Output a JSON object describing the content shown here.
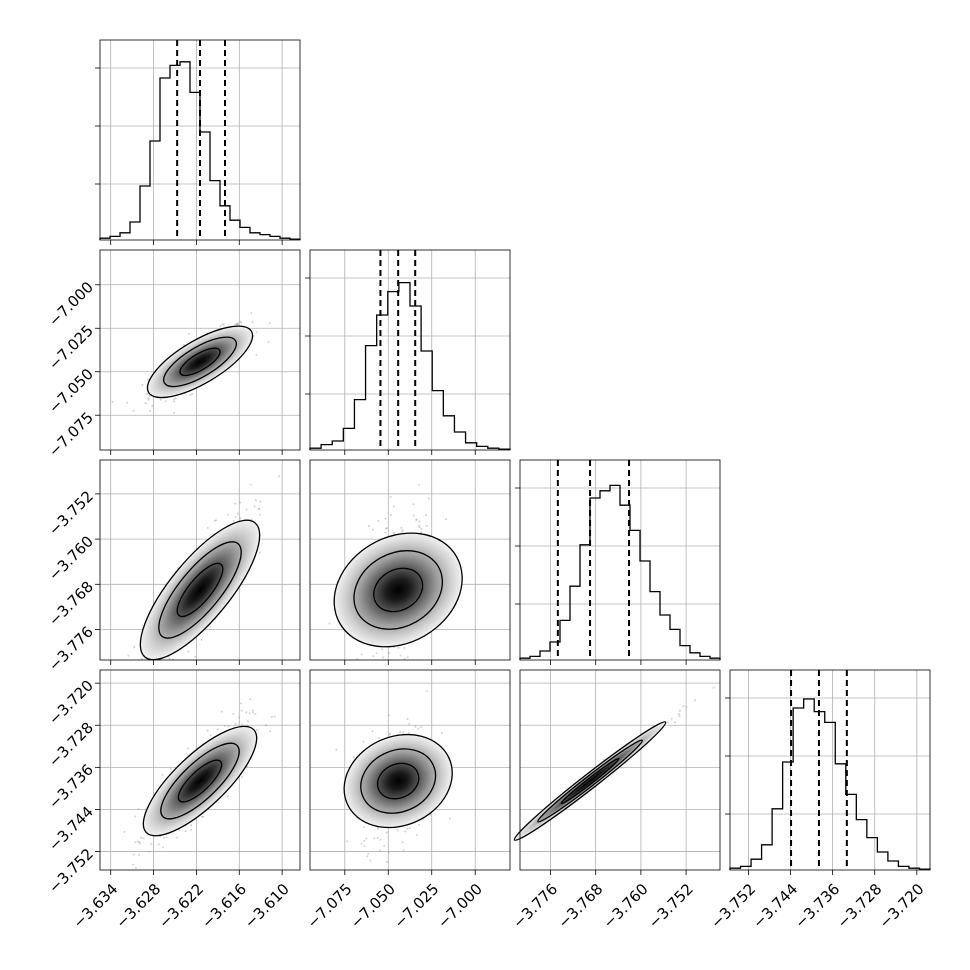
{
  "chart_data": {
    "type": "corner",
    "grid": true,
    "parameters": [
      {
        "range": [
          -3.6355,
          -3.6075
        ],
        "ticks": [
          "−3.634",
          "−3.628",
          "−3.622",
          "−3.616",
          "−3.610"
        ],
        "tick_values": [
          -3.634,
          -3.628,
          -3.622,
          -3.616,
          -3.61
        ],
        "quantiles": [
          -3.6247,
          -3.6215,
          -3.618
        ],
        "histogram": [
          0.01,
          0.02,
          0.04,
          0.1,
          0.3,
          0.55,
          0.9,
          0.97,
          0.99,
          0.82,
          0.6,
          0.33,
          0.19,
          0.11,
          0.07,
          0.04,
          0.03,
          0.02,
          0.01,
          0.005
        ]
      },
      {
        "range": [
          -7.095,
          -6.98
        ],
        "ticks": [
          "−7.075",
          "−7.050",
          "−7.025",
          "−7.000"
        ],
        "tick_values": [
          -7.075,
          -7.05,
          -7.025,
          -7.0
        ],
        "quantiles": [
          -7.0545,
          -7.0443,
          -7.0345
        ],
        "histogram": [
          0.01,
          0.03,
          0.05,
          0.12,
          0.28,
          0.58,
          0.75,
          0.88,
          0.93,
          0.8,
          0.55,
          0.33,
          0.19,
          0.1,
          0.04,
          0.02,
          0.01,
          0.005
        ]
      },
      {
        "range": [
          -3.7814,
          -3.746
        ],
        "ticks": [
          "−3.776",
          "−3.768",
          "−3.760",
          "−3.752"
        ],
        "tick_values": [
          -3.776,
          -3.768,
          -3.76,
          -3.752
        ],
        "quantiles": [
          -3.7747,
          -3.769,
          -3.7621
        ],
        "histogram": [
          0.01,
          0.02,
          0.05,
          0.1,
          0.22,
          0.41,
          0.64,
          0.9,
          0.94,
          0.97,
          0.86,
          0.72,
          0.55,
          0.38,
          0.25,
          0.17,
          0.08,
          0.04,
          0.02,
          0.01
        ]
      },
      {
        "range": [
          -3.7555,
          -3.7175
        ],
        "ticks": [
          "−3.752",
          "−3.744",
          "−3.736",
          "−3.728",
          "−3.720"
        ],
        "tick_values": [
          -3.752,
          -3.744,
          -3.736,
          -3.728,
          -3.72
        ],
        "quantiles": [
          -3.7439,
          -3.7386,
          -3.7333
        ],
        "histogram": [
          0.01,
          0.02,
          0.06,
          0.14,
          0.34,
          0.6,
          0.9,
          0.95,
          0.88,
          0.82,
          0.59,
          0.42,
          0.28,
          0.18,
          0.1,
          0.05,
          0.02,
          0.01,
          0.005
        ]
      }
    ]
  }
}
